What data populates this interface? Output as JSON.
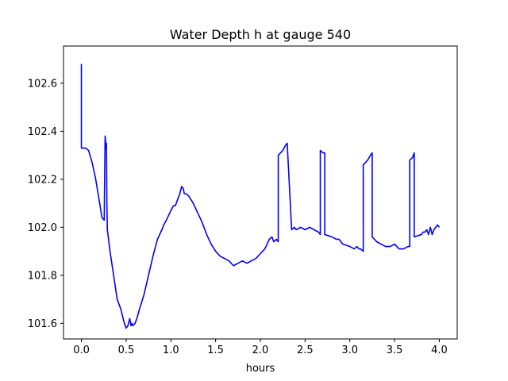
{
  "chart_data": {
    "type": "line",
    "title": "Water Depth h at gauge 540",
    "xlabel": "hours",
    "ylabel": "",
    "xlim": [
      -0.2,
      4.2
    ],
    "ylim": [
      101.535,
      102.755
    ],
    "x_ticks": [
      0.0,
      0.5,
      1.0,
      1.5,
      2.0,
      2.5,
      3.0,
      3.5,
      4.0
    ],
    "x_tick_labels": [
      "0.0",
      "0.5",
      "1.0",
      "1.5",
      "2.0",
      "2.5",
      "3.0",
      "3.5",
      "4.0"
    ],
    "y_ticks": [
      101.6,
      101.8,
      102.0,
      102.2,
      102.4,
      102.6
    ],
    "y_tick_labels": [
      "101.6",
      "101.8",
      "102.0",
      "102.2",
      "102.4",
      "102.6"
    ],
    "grid": false,
    "legend": "none",
    "series_color": "#0000ff",
    "series": [
      {
        "name": "",
        "x": [
          0.0,
          0.0,
          0.05,
          0.08,
          0.12,
          0.16,
          0.2,
          0.23,
          0.255,
          0.265,
          0.27,
          0.275,
          0.28,
          0.285,
          0.29,
          0.32,
          0.36,
          0.4,
          0.44,
          0.46,
          0.48,
          0.5,
          0.52,
          0.54,
          0.555,
          0.565,
          0.575,
          0.6,
          0.62,
          0.65,
          0.7,
          0.75,
          0.8,
          0.85,
          0.9,
          0.92,
          0.95,
          1.0,
          1.03,
          1.05,
          1.08,
          1.1,
          1.12,
          1.14,
          1.15,
          1.17,
          1.2,
          1.25,
          1.3,
          1.35,
          1.4,
          1.45,
          1.5,
          1.55,
          1.6,
          1.65,
          1.7,
          1.75,
          1.8,
          1.85,
          1.9,
          1.95,
          2.0,
          2.05,
          2.1,
          2.13,
          2.15,
          2.18,
          2.2,
          2.2,
          2.25,
          2.28,
          2.3,
          2.35,
          2.38,
          2.4,
          2.45,
          2.5,
          2.55,
          2.6,
          2.65,
          2.67,
          2.67,
          2.7,
          2.72,
          2.72,
          2.8,
          2.85,
          2.88,
          2.92,
          3.0,
          3.05,
          3.08,
          3.1,
          3.12,
          3.15,
          3.15,
          3.2,
          3.23,
          3.25,
          3.25,
          3.3,
          3.35,
          3.4,
          3.45,
          3.5,
          3.55,
          3.6,
          3.65,
          3.67,
          3.67,
          3.7,
          3.72,
          3.72,
          3.8,
          3.82,
          3.84,
          3.86,
          3.88,
          3.9,
          3.92,
          3.94,
          3.96,
          3.98,
          4.0
        ],
        "y": [
          102.68,
          102.33,
          102.33,
          102.32,
          102.27,
          102.2,
          102.11,
          102.04,
          102.03,
          102.38,
          102.36,
          102.33,
          102.35,
          102.1,
          101.99,
          101.9,
          101.8,
          101.7,
          101.66,
          101.63,
          101.6,
          101.58,
          101.59,
          101.62,
          101.59,
          101.6,
          101.59,
          101.6,
          101.62,
          101.66,
          101.72,
          101.8,
          101.88,
          101.95,
          101.99,
          102.01,
          102.03,
          102.07,
          102.09,
          102.09,
          102.12,
          102.14,
          102.17,
          102.16,
          102.14,
          102.14,
          102.13,
          102.1,
          102.06,
          102.02,
          101.97,
          101.93,
          101.9,
          101.88,
          101.87,
          101.86,
          101.84,
          101.85,
          101.86,
          101.85,
          101.86,
          101.87,
          101.89,
          101.91,
          101.95,
          101.96,
          101.94,
          101.95,
          101.94,
          102.3,
          102.32,
          102.34,
          102.35,
          101.99,
          102.0,
          101.99,
          102.0,
          101.99,
          102.0,
          101.99,
          101.98,
          101.97,
          102.32,
          102.31,
          102.31,
          101.97,
          101.96,
          101.95,
          101.95,
          101.93,
          101.92,
          101.91,
          101.92,
          101.91,
          101.91,
          101.9,
          102.26,
          102.28,
          102.3,
          102.31,
          101.96,
          101.94,
          101.93,
          101.92,
          101.92,
          101.93,
          101.91,
          101.91,
          101.92,
          101.92,
          102.28,
          102.29,
          102.31,
          101.96,
          101.97,
          101.98,
          101.98,
          101.99,
          101.97,
          102.0,
          101.97,
          101.99,
          102.0,
          102.01,
          102.0
        ]
      }
    ]
  }
}
